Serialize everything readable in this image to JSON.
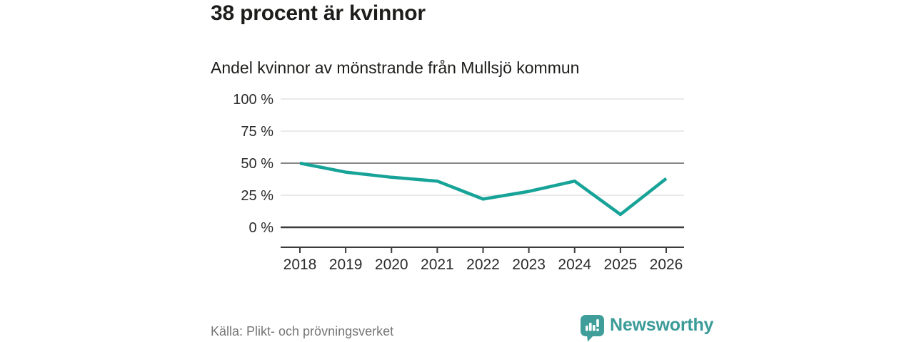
{
  "chart_data": {
    "type": "line",
    "title": "38 procent är kvinnor",
    "subtitle": "Andel kvinnor av mönstrande från Mullsjö kommun",
    "categories": [
      "2018",
      "2019",
      "2020",
      "2021",
      "2022",
      "2023",
      "2024",
      "2025",
      "2026"
    ],
    "values": [
      50,
      43,
      39,
      36,
      22,
      28,
      36,
      10,
      38
    ],
    "unit": "%",
    "xlabel": "",
    "ylabel": "",
    "ylim": [
      0,
      100
    ],
    "yticks": [
      0,
      25,
      50,
      75,
      100
    ],
    "ytick_labels": [
      "0 %",
      "25 %",
      "50 %",
      "75 %",
      "100 %"
    ],
    "emphasized_gridlines": [
      0,
      50
    ],
    "grid": "on",
    "legend": "none",
    "line_color": "#17a398"
  },
  "footer": {
    "source": "Källa: Plikt- och prövningsverket",
    "brand": "Newsworthy"
  },
  "colors": {
    "brand_teal": "#3b9b97",
    "line_teal": "#17a398",
    "text_dark": "#1d1d1b",
    "muted_gray": "#767676",
    "grid_light": "#e3e3e3",
    "grid_mid": "#868686",
    "axis_dark": "#3c3c3c"
  }
}
